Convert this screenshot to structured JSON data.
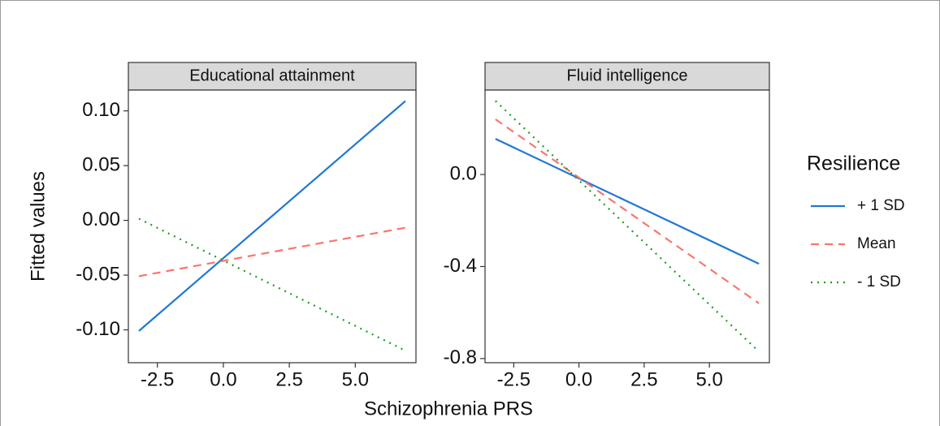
{
  "x_label": "Schizophrenia PRS",
  "y_label": "Fitted values",
  "legend_title": "Resilience",
  "chart_data": [
    {
      "type": "line",
      "title": "Educational attainment",
      "x": [
        -3.2,
        6.9
      ],
      "xlim": [
        -3.6,
        7.3
      ],
      "xticks": [
        -2.5,
        {
          "value": 0,
          "label": "0.0"
        },
        2.5,
        {
          "value": 5,
          "label": "5.0"
        }
      ],
      "ylim": [
        -0.13,
        0.119
      ],
      "yticks": [
        {
          "value": -0.1,
          "label": "-0.10"
        },
        -0.05,
        {
          "value": 0,
          "label": "0.00"
        },
        0.05,
        {
          "value": 0.1,
          "label": "0.10"
        }
      ],
      "series": [
        {
          "name": "+ 1 SD",
          "color": "#1f77d4",
          "dash": "solid",
          "values": [
            -0.101,
            0.109
          ]
        },
        {
          "name": "Mean",
          "color": "#f8766d",
          "dash": "dashed",
          "values": [
            -0.051,
            -0.0067
          ]
        },
        {
          "name": "- 1 SD",
          "color": "#1f9a1f",
          "dash": "dotted",
          "values": [
            0.0015,
            -0.119
          ]
        }
      ]
    },
    {
      "type": "line",
      "title": "Fluid intelligence",
      "x": [
        -3.2,
        6.9
      ],
      "xlim": [
        -3.6,
        7.3
      ],
      "xticks": [
        -2.5,
        {
          "value": 0,
          "label": "0.0"
        },
        2.5,
        {
          "value": 5,
          "label": "5.0"
        }
      ],
      "ylim": [
        -0.818,
        0.367
      ],
      "yticks": [
        -0.8,
        -0.4,
        {
          "value": 0,
          "label": "0.0"
        }
      ],
      "series": [
        {
          "name": "+ 1 SD",
          "color": "#1f77d4",
          "dash": "solid",
          "values": [
            0.155,
            -0.388
          ]
        },
        {
          "name": "Mean",
          "color": "#f8766d",
          "dash": "dashed",
          "values": [
            0.24,
            -0.56
          ]
        },
        {
          "name": "- 1 SD",
          "color": "#1f9a1f",
          "dash": "dotted",
          "values": [
            0.32,
            -0.77
          ]
        }
      ]
    }
  ]
}
